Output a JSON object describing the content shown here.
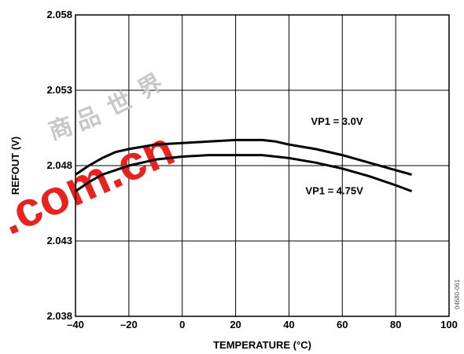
{
  "chart_data": {
    "type": "line",
    "title": "",
    "xlabel": "TEMPERATURE (°C)",
    "ylabel": "REFOUT (V)",
    "xlim": [
      -40,
      100
    ],
    "ylim": [
      2.038,
      2.058
    ],
    "x_ticks": [
      -40,
      -20,
      0,
      20,
      40,
      60,
      80,
      100
    ],
    "x_tick_labels": [
      "–40",
      "–20",
      "0",
      "20",
      "40",
      "60",
      "80",
      "100"
    ],
    "y_ticks": [
      2.038,
      2.043,
      2.048,
      2.053,
      2.058
    ],
    "y_tick_labels": [
      "2.038",
      "2.043",
      "2.048",
      "2.053",
      "2.058"
    ],
    "grid": true,
    "series": [
      {
        "name": "VP1 = 3.0V",
        "x": [
          -40,
          -35,
          -30,
          -25,
          -20,
          -10,
          0,
          10,
          20,
          30,
          35,
          40,
          50,
          60,
          70,
          80,
          86
        ],
        "y": [
          2.0474,
          2.048,
          2.0485,
          2.0489,
          2.0491,
          2.0494,
          2.0495,
          2.0496,
          2.0497,
          2.0497,
          2.0496,
          2.0494,
          2.0491,
          2.0487,
          2.0482,
          2.0477,
          2.0474
        ],
        "color": "#000000"
      },
      {
        "name": "VP1 = 4.75V",
        "x": [
          -40,
          -35,
          -30,
          -25,
          -20,
          -10,
          0,
          10,
          20,
          30,
          35,
          40,
          50,
          60,
          70,
          80,
          86
        ],
        "y": [
          2.0463,
          2.0469,
          2.0474,
          2.0477,
          2.048,
          2.0484,
          2.0486,
          2.0487,
          2.0487,
          2.0487,
          2.0486,
          2.0485,
          2.0482,
          2.0478,
          2.0473,
          2.0467,
          2.0463
        ],
        "color": "#000000"
      }
    ],
    "annotations": [
      {
        "text": "VP1 = 3.0V",
        "x": 58,
        "y": 2.0507
      },
      {
        "text": "VP1 = 4.75V",
        "x": 57,
        "y": 2.0461
      }
    ],
    "figure_id": "04680-061"
  },
  "watermark": {
    "text": ".com.cn",
    "color": "#e8231f",
    "chars": "商品世界"
  }
}
